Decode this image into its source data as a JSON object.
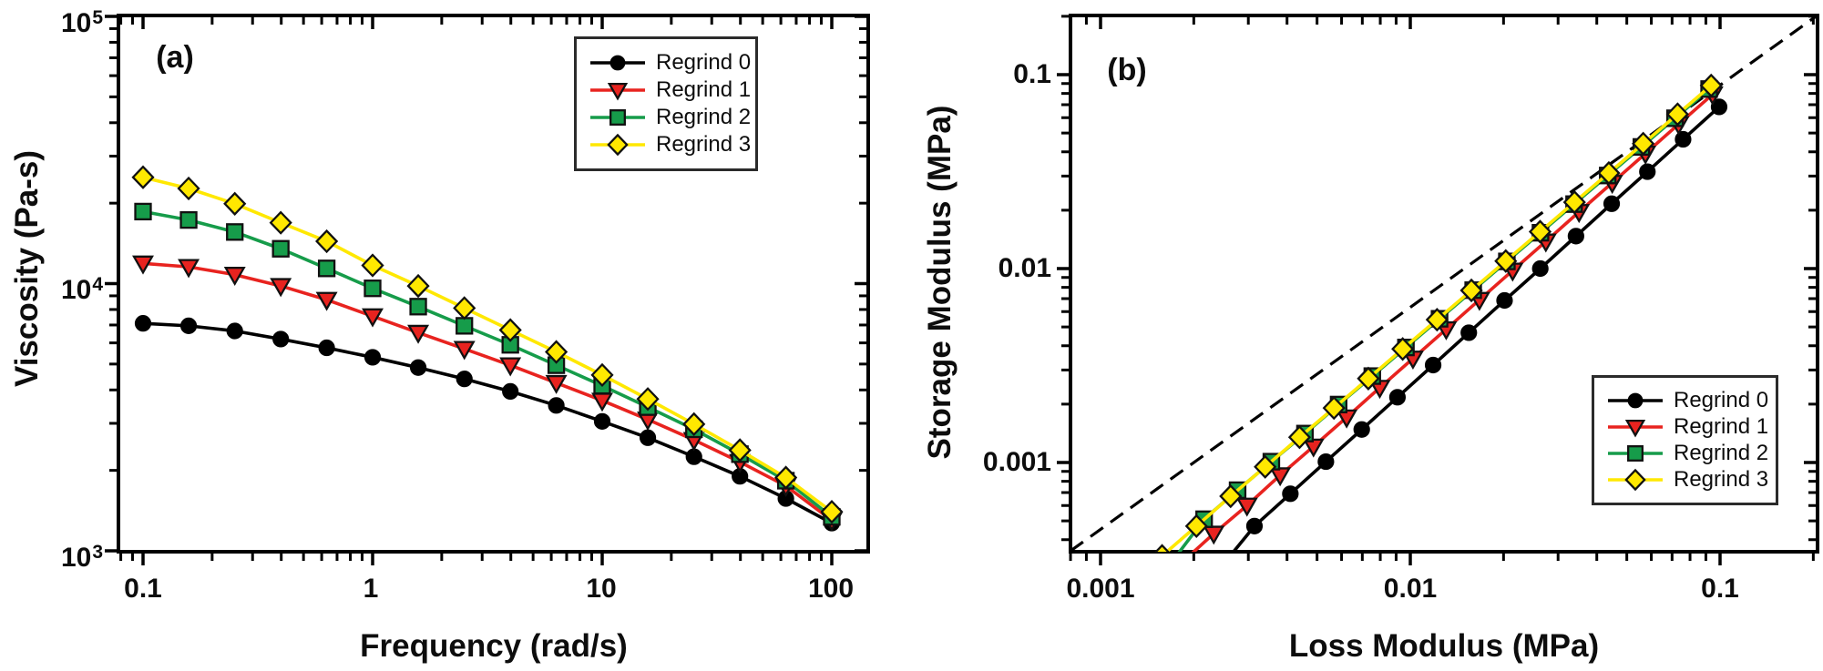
{
  "colors": {
    "regrind0": "#000000",
    "regrind1": "#e8231f",
    "regrind2": "#169c4a",
    "regrind3": "#ffe800",
    "marker_edge": "#111111",
    "axis": "#000000",
    "background": "#ffffff"
  },
  "legend": {
    "items": [
      {
        "label": "Regrind 0",
        "marker": "circle",
        "color": "#000000"
      },
      {
        "label": "Regrind 1",
        "marker": "triangle-down",
        "color": "#e8231f"
      },
      {
        "label": "Regrind 2",
        "marker": "square",
        "color": "#169c4a"
      },
      {
        "label": "Regrind 3",
        "marker": "diamond",
        "color": "#ffe800"
      }
    ]
  },
  "chart_data": [
    {
      "id": "a",
      "type": "line",
      "panel_label": "(a)",
      "x_axis": {
        "label": "Frequency (rad/s)",
        "scale": "log",
        "ticks": [
          0.1,
          1,
          10,
          100
        ],
        "tick_labels": [
          "0.1",
          "1",
          "10",
          "100"
        ],
        "range": [
          0.078,
          145
        ]
      },
      "y_axis": {
        "label": "Viscosity (Pa-s)",
        "scale": "log",
        "ticks": [
          1000,
          10000,
          100000
        ],
        "tick_labels": [
          {
            "base": "10",
            "exp": "3"
          },
          {
            "base": "10",
            "exp": "4"
          },
          {
            "base": "10",
            "exp": "5"
          }
        ],
        "range": [
          1000,
          100000
        ]
      },
      "x": [
        0.1,
        0.158,
        0.251,
        0.398,
        0.631,
        1,
        1.58,
        2.51,
        3.98,
        6.31,
        10,
        15.8,
        25.1,
        39.8,
        63.1,
        100
      ],
      "series": [
        {
          "name": "Regrind 0",
          "marker": "circle",
          "color": "#000000",
          "values": [
            7100,
            6950,
            6650,
            6200,
            5750,
            5300,
            4850,
            4400,
            3950,
            3500,
            3050,
            2650,
            2250,
            1900,
            1570,
            1270
          ]
        },
        {
          "name": "Regrind 1",
          "marker": "triangle-down",
          "color": "#e8231f",
          "values": [
            11900,
            11550,
            10800,
            9800,
            8700,
            7550,
            6550,
            5700,
            4950,
            4250,
            3650,
            3100,
            2600,
            2150,
            1750,
            1300
          ]
        },
        {
          "name": "Regrind 2",
          "marker": "square",
          "color": "#169c4a",
          "values": [
            18600,
            17300,
            15600,
            13500,
            11400,
            9600,
            8200,
            6950,
            5900,
            4950,
            4150,
            3450,
            2850,
            2300,
            1830,
            1340
          ]
        },
        {
          "name": "Regrind 3",
          "marker": "diamond",
          "color": "#ffe800",
          "values": [
            25000,
            22700,
            19900,
            16900,
            14400,
            11700,
            9800,
            8100,
            6700,
            5550,
            4550,
            3700,
            2980,
            2380,
            1880,
            1400
          ]
        }
      ]
    },
    {
      "id": "b",
      "type": "scatter-line",
      "panel_label": "(b)",
      "x_axis": {
        "label": "Loss Modulus (MPa)",
        "scale": "log",
        "ticks": [
          0.001,
          0.01,
          0.1
        ],
        "tick_labels": [
          "0.001",
          "0.01",
          "0.1"
        ],
        "range": [
          0.0008,
          0.206
        ]
      },
      "y_axis": {
        "label": "Storage Modulus (MPa)",
        "scale": "log",
        "ticks": [
          0.001,
          0.01,
          0.1
        ],
        "tick_labels": [
          "0.001",
          "0.01",
          "0.1"
        ],
        "range": [
          0.00035,
          0.202
        ]
      },
      "guide_line": {
        "style": "dashed",
        "from": [
          0.0008,
          0.00035
        ],
        "to": [
          0.206,
          0.202
        ]
      },
      "series": [
        {
          "name": "Regrind 0",
          "marker": "circle",
          "color": "#000000",
          "x": [
            0.00241,
            0.00314,
            0.0041,
            0.00534,
            0.00697,
            0.00909,
            0.01185,
            0.01545,
            0.02015,
            0.02628,
            0.03427,
            0.04468,
            0.05827,
            0.07598,
            0.0993
          ],
          "y": [
            0.00028,
            0.00047,
            0.00069,
            0.00101,
            0.00148,
            0.00217,
            0.00318,
            0.00467,
            0.00685,
            0.01,
            0.0147,
            0.0216,
            0.0316,
            0.0464,
            0.0682
          ]
        },
        {
          "name": "Regrind 1",
          "marker": "triangle-down",
          "color": "#e8231f",
          "x": [
            0.00181,
            0.00232,
            0.00297,
            0.0038,
            0.00487,
            0.00623,
            0.00797,
            0.0102,
            0.01306,
            0.01672,
            0.0214,
            0.02739,
            0.03506,
            0.04487,
            0.05743,
            0.07351,
            0.0946
          ],
          "y": [
            0.0003,
            0.00043,
            0.0006,
            0.00086,
            0.00121,
            0.00171,
            0.00243,
            0.00344,
            0.00487,
            0.0069,
            0.00977,
            0.0138,
            0.0196,
            0.0277,
            0.0392,
            0.0556,
            0.0791
          ]
        },
        {
          "name": "Regrind 2",
          "marker": "square",
          "color": "#169c4a",
          "x": [
            0.00168,
            0.00216,
            0.00277,
            0.00356,
            0.00457,
            0.00587,
            0.00754,
            0.00968,
            0.01243,
            0.01596,
            0.0205,
            0.02632,
            0.03379,
            0.04339,
            0.05572,
            0.07154,
            0.0922
          ],
          "y": [
            0.0003,
            0.00051,
            0.00072,
            0.00101,
            0.00141,
            0.00199,
            0.00279,
            0.00392,
            0.00551,
            0.00774,
            0.01089,
            0.0153,
            0.0215,
            0.0302,
            0.0424,
            0.0596,
            0.0843
          ]
        },
        {
          "name": "Regrind 3",
          "marker": "diamond",
          "color": "#ffe800",
          "x": [
            0.00158,
            0.00204,
            0.00263,
            0.0034,
            0.00439,
            0.00567,
            0.00732,
            0.00945,
            0.0122,
            0.01575,
            0.02033,
            0.02625,
            0.03389,
            0.04375,
            0.05648,
            0.07291,
            0.0936
          ],
          "y": [
            0.00033,
            0.00047,
            0.00067,
            0.00095,
            0.00135,
            0.00191,
            0.00271,
            0.00385,
            0.00545,
            0.00772,
            0.01094,
            0.0155,
            0.022,
            0.0311,
            0.0441,
            0.0625,
            0.0879
          ]
        }
      ]
    }
  ]
}
